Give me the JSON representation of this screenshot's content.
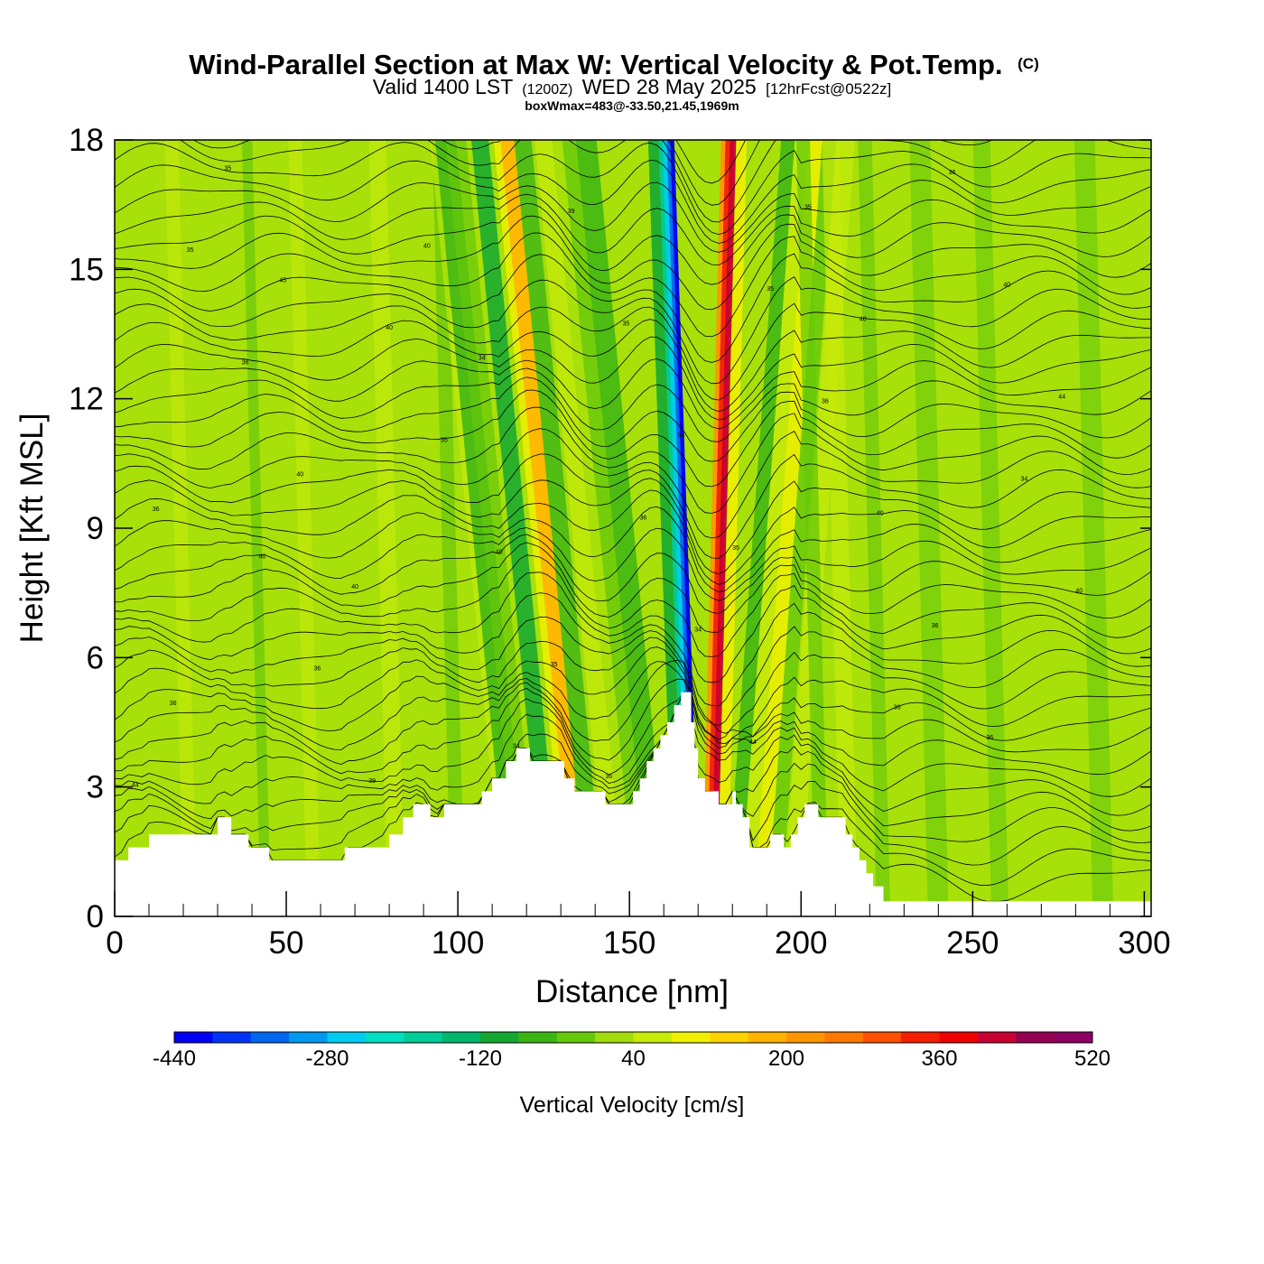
{
  "chart_data": {
    "type": "heatmap",
    "title": "Wind-Parallel Section at Max W: Vertical Velocity & Pot.Temp.",
    "title_suffix": "(C)",
    "subtitle_parts": [
      "Valid 1400 LST",
      "(1200Z)",
      "WED 28 May 2025",
      "[12hrFcst@0522z]"
    ],
    "subtitle2": "boxWmax=483@-33.50,21.45,1969m",
    "xlabel": "Distance [nm]",
    "ylabel": "Height [Kft MSL]",
    "xlim": [
      0,
      302
    ],
    "ylim": [
      0,
      18
    ],
    "x_ticks": [
      "0",
      "50",
      "100",
      "150",
      "200",
      "250",
      "300"
    ],
    "y_ticks": [
      "0",
      "3",
      "6",
      "9",
      "12",
      "15",
      "18"
    ],
    "colorbar": {
      "title": "Vertical Velocity [cm/s]",
      "min": -440,
      "max": 520,
      "step": 40,
      "tick_labels": [
        "-440",
        "-280",
        "-120",
        "40",
        "200",
        "360",
        "520"
      ],
      "colors": [
        "#0000f2",
        "#0033f5",
        "#0066f0",
        "#0099f0",
        "#00ccf0",
        "#00e0c0",
        "#00cc99",
        "#00b86b",
        "#14a832",
        "#3cb414",
        "#66c80a",
        "#a0dc0a",
        "#c8eb0a",
        "#f0f000",
        "#ffd200",
        "#ffb400",
        "#ff9600",
        "#ff7800",
        "#ff5000",
        "#f51e00",
        "#f00000",
        "#c80032",
        "#960050",
        "#8c0064"
      ]
    },
    "terrain_kft": [
      [
        0,
        1.3
      ],
      [
        4,
        1.3
      ],
      [
        4,
        1.6
      ],
      [
        10,
        1.6
      ],
      [
        10,
        1.9
      ],
      [
        30,
        1.9
      ],
      [
        30,
        2.3
      ],
      [
        34,
        2.3
      ],
      [
        34,
        1.9
      ],
      [
        39,
        1.9
      ],
      [
        39,
        1.6
      ],
      [
        45,
        1.6
      ],
      [
        45,
        1.3
      ],
      [
        67,
        1.3
      ],
      [
        67,
        1.6
      ],
      [
        80,
        1.6
      ],
      [
        80,
        1.9
      ],
      [
        84,
        1.9
      ],
      [
        84,
        2.3
      ],
      [
        87,
        2.3
      ],
      [
        87,
        2.6
      ],
      [
        92,
        2.6
      ],
      [
        92,
        2.3
      ],
      [
        96,
        2.3
      ],
      [
        96,
        2.6
      ],
      [
        107,
        2.6
      ],
      [
        107,
        2.9
      ],
      [
        110,
        2.9
      ],
      [
        110,
        3.2
      ],
      [
        114,
        3.2
      ],
      [
        114,
        3.6
      ],
      [
        117,
        3.6
      ],
      [
        117,
        3.9
      ],
      [
        121,
        3.9
      ],
      [
        121,
        3.6
      ],
      [
        131,
        3.6
      ],
      [
        131,
        3.2
      ],
      [
        134,
        3.2
      ],
      [
        134,
        2.9
      ],
      [
        143,
        2.9
      ],
      [
        143,
        2.6
      ],
      [
        151,
        2.6
      ],
      [
        151,
        2.9
      ],
      [
        153,
        2.9
      ],
      [
        153,
        3.2
      ],
      [
        155,
        3.2
      ],
      [
        155,
        3.6
      ],
      [
        157,
        3.6
      ],
      [
        157,
        3.9
      ],
      [
        159,
        3.9
      ],
      [
        159,
        4.2
      ],
      [
        161,
        4.2
      ],
      [
        161,
        4.5
      ],
      [
        163,
        4.5
      ],
      [
        163,
        4.9
      ],
      [
        165,
        4.9
      ],
      [
        165,
        5.2
      ],
      [
        168,
        5.2
      ],
      [
        168,
        4.5
      ],
      [
        169,
        4.5
      ],
      [
        169,
        3.9
      ],
      [
        170,
        3.9
      ],
      [
        170,
        3.2
      ],
      [
        172,
        3.2
      ],
      [
        172,
        2.9
      ],
      [
        176,
        2.9
      ],
      [
        176,
        2.6
      ],
      [
        180,
        2.6
      ],
      [
        180,
        2.9
      ],
      [
        181,
        2.9
      ],
      [
        181,
        2.6
      ],
      [
        183,
        2.6
      ],
      [
        183,
        2.3
      ],
      [
        185,
        2.3
      ],
      [
        185,
        1.6
      ],
      [
        191,
        1.6
      ],
      [
        191,
        1.9
      ],
      [
        195,
        1.9
      ],
      [
        195,
        1.6
      ],
      [
        197,
        1.6
      ],
      [
        197,
        1.9
      ],
      [
        199,
        1.9
      ],
      [
        199,
        2.3
      ],
      [
        201,
        2.3
      ],
      [
        201,
        2.6
      ],
      [
        205,
        2.6
      ],
      [
        205,
        2.3
      ],
      [
        213,
        2.3
      ],
      [
        213,
        1.9
      ],
      [
        215,
        1.9
      ],
      [
        215,
        1.6
      ],
      [
        217,
        1.6
      ],
      [
        217,
        1.3
      ],
      [
        219,
        1.3
      ],
      [
        219,
        1.0
      ],
      [
        221,
        1.0
      ],
      [
        221,
        0.7
      ],
      [
        224,
        0.7
      ],
      [
        224,
        0.35
      ],
      [
        302,
        0.35
      ]
    ],
    "theta_contour_labels": [
      "44",
      "40",
      "40",
      "34",
      "36",
      "35",
      "36",
      "34",
      "35",
      "36",
      "35",
      "39",
      "34",
      "36",
      "36",
      "40",
      "36",
      "39",
      "40",
      "35",
      "44",
      "40",
      "40",
      "36",
      "40",
      "40",
      "35",
      "35",
      "35",
      "36",
      "44",
      "35",
      "40",
      "34",
      "36",
      "35",
      "40",
      "36",
      "36",
      "45"
    ],
    "max_w_cm_s": 483,
    "max_w_location": {
      "lat": -33.5,
      "lon": 21.45,
      "height_m": 1969
    }
  }
}
